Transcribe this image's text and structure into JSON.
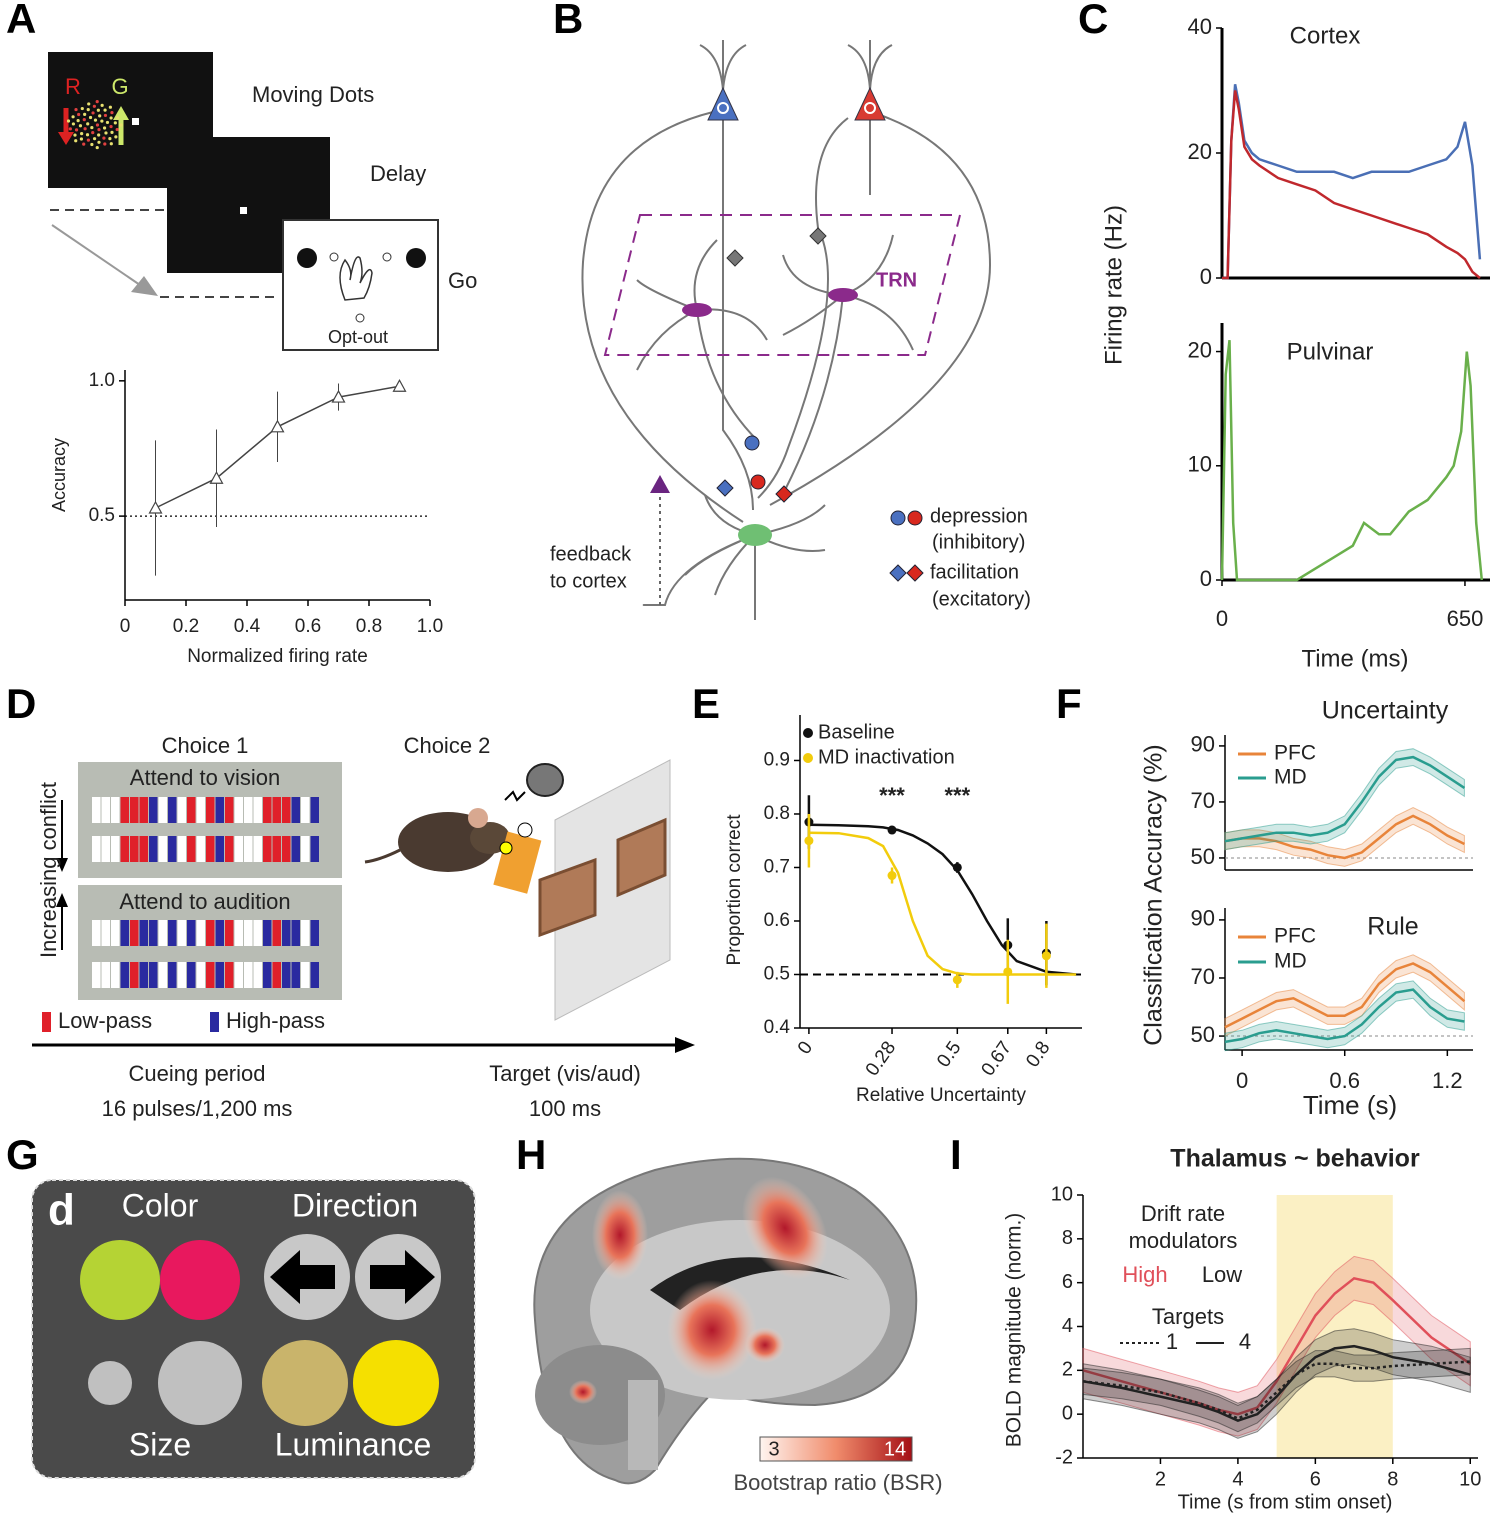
{
  "panels": {
    "letters": [
      "A",
      "B",
      "C",
      "D",
      "E",
      "F",
      "G",
      "H",
      "I"
    ],
    "a": {
      "r": "R",
      "g": "G",
      "moving_dots": "Moving Dots",
      "delay": "Delay",
      "go": "Go",
      "opt_out": "Opt-out"
    },
    "b": {
      "trn": "TRN",
      "feedback": "feedback",
      "to_cortex": "to cortex",
      "depression": "depression",
      "inhibitory": "(inhibitory)",
      "facilitation": "facilitation",
      "excitatory": "(excitatory)"
    },
    "d": {
      "choice1": "Choice 1",
      "choice2": "Choice 2",
      "vision": "Attend to vision",
      "audition": "Attend to audition",
      "conflict": "Increasing conflict",
      "low_pass": "Low-pass",
      "high_pass": "High-pass",
      "cueing": "Cueing period",
      "pulses": "16 pulses/1,200 ms",
      "target": "Target (vis/aud)",
      "target_ms": "100 ms"
    },
    "g": {
      "letter": "d",
      "color": "Color",
      "direction": "Direction",
      "size": "Size",
      "luminance": "Luminance"
    },
    "h": {
      "bar_min": "3",
      "bar_max": "14",
      "bar_label": "Bootstrap ratio (BSR)"
    }
  },
  "chart_data": [
    {
      "type": "line",
      "x": [
        0.1,
        0.3,
        0.5,
        0.7,
        0.9
      ],
      "values": [
        0.53,
        0.64,
        0.83,
        0.94,
        0.98
      ],
      "errors": [
        0.25,
        0.18,
        0.13,
        0.05,
        0.02
      ],
      "color": "#444444",
      "marker": "triangle",
      "xlim": [
        0,
        1
      ],
      "xticks": [
        0,
        0.2,
        0.4,
        0.6,
        0.8,
        {
          "value": 1,
          "label": "1.0"
        }
      ],
      "ylim": [
        0.19,
        1.04
      ],
      "yticks": [
        0.5,
        {
          "value": 1,
          "label": "1.0"
        }
      ],
      "hline": 0.5,
      "xlabel": "Normalized firing rate",
      "ylabel": "Accuracy"
    },
    {
      "type": "line",
      "title": "Cortex",
      "ylabel": "Firing rate (Hz)",
      "x": [
        0,
        15,
        25,
        35,
        45,
        60,
        80,
        100,
        150,
        200,
        250,
        300,
        350,
        400,
        450,
        500,
        550,
        600,
        630,
        650,
        670,
        690
      ],
      "xlim": [
        0,
        717
      ],
      "ylim": [
        0,
        40
      ],
      "yticks": [
        0,
        20,
        40
      ],
      "series": [
        {
          "color": "#4a6fb5",
          "values": [
            0,
            0,
            22,
            31,
            28,
            22,
            20,
            19,
            18,
            17,
            17,
            17,
            16,
            17,
            17,
            17,
            18,
            19,
            21,
            25,
            18,
            3
          ]
        },
        {
          "color": "#c0282d",
          "values": [
            0,
            0,
            22,
            30,
            27,
            21,
            19,
            18,
            16,
            15,
            14,
            12,
            11,
            10,
            9,
            8,
            7,
            5,
            4,
            3,
            1,
            0
          ]
        }
      ]
    },
    {
      "type": "line",
      "title": "Pulvinar",
      "xlabel": "Time (ms)",
      "x": [
        0,
        10,
        20,
        30,
        40,
        100,
        200,
        250,
        300,
        350,
        380,
        420,
        450,
        500,
        550,
        600,
        620,
        640,
        655,
        665,
        680,
        695
      ],
      "values": [
        0,
        18,
        21,
        5,
        0,
        0,
        0,
        1,
        2,
        3,
        5,
        4,
        4,
        6,
        7,
        9,
        10,
        13,
        20,
        17,
        5,
        0
      ],
      "color": "#6ab04c",
      "xlim": [
        0,
        717
      ],
      "xticks": [
        0,
        650
      ],
      "ylim": [
        0,
        22.5
      ],
      "yticks": [
        0,
        10,
        20
      ]
    },
    {
      "type": "line",
      "xlabel": "Relative Uncertainty",
      "ylabel": "Proportion correct",
      "x": [
        0,
        0.28,
        0.5,
        0.67,
        0.8
      ],
      "fit_x": [
        0,
        0.1,
        0.2,
        0.25,
        0.3,
        0.35,
        0.4,
        0.45,
        0.5,
        0.55,
        0.6,
        0.65,
        0.7,
        0.8,
        0.9
      ],
      "xlim": [
        -0.03,
        0.92
      ],
      "xticks": [
        0,
        0.28,
        0.5,
        0.67,
        0.8
      ],
      "ylim": [
        0.4,
        0.985
      ],
      "yticks": [
        0.4,
        0.5,
        0.6,
        0.7,
        0.8,
        0.9
      ],
      "hline": 0.5,
      "annotations": [
        "***",
        "***"
      ],
      "series": [
        {
          "name": "Baseline",
          "color": "#111111",
          "marker": "circle",
          "values": [
            0.785,
            0.77,
            0.7,
            0.555,
            0.54
          ],
          "errors": [
            0.05,
            0.005,
            0.01,
            0.05,
            0.06
          ],
          "fit": [
            0.78,
            0.779,
            0.777,
            0.775,
            0.77,
            0.76,
            0.745,
            0.725,
            0.695,
            0.65,
            0.6,
            0.555,
            0.525,
            0.505,
            0.5
          ]
        },
        {
          "name": "MD inactivation",
          "color": "#f2cc0c",
          "marker": "circle",
          "values": [
            0.75,
            0.685,
            0.49,
            0.505,
            0.535
          ],
          "errors": [
            0.05,
            0.015,
            0.015,
            0.06,
            0.06
          ],
          "fit": [
            0.765,
            0.764,
            0.755,
            0.74,
            0.69,
            0.6,
            0.535,
            0.51,
            0.502,
            0.5,
            0.5,
            0.5,
            0.5,
            0.5,
            0.5
          ]
        }
      ]
    },
    {
      "type": "line",
      "title": "Uncertainty",
      "ylabel": "Classification Accuracy (%)",
      "x": [
        -0.1,
        0,
        0.1,
        0.2,
        0.3,
        0.4,
        0.5,
        0.6,
        0.7,
        0.8,
        0.9,
        1.0,
        1.1,
        1.2,
        1.3
      ],
      "xlim": [
        -0.1,
        1.35
      ],
      "ylim": [
        45.7,
        93.9
      ],
      "yticks": [
        50,
        70,
        90
      ],
      "hline": 50,
      "series": [
        {
          "name": "PFC",
          "color": "#e8843a",
          "error": 3,
          "values": [
            56,
            57,
            57,
            56,
            54,
            53,
            51,
            50,
            52,
            57,
            62,
            65,
            62,
            58,
            55
          ]
        },
        {
          "name": "MD",
          "color": "#2a9d8f",
          "error": 3,
          "values": [
            56,
            57,
            58,
            59,
            59,
            58,
            59,
            62,
            70,
            79,
            85,
            86,
            83,
            79,
            75
          ]
        }
      ]
    },
    {
      "type": "line",
      "title": "Rule",
      "xlabel": "Time (s)",
      "x": [
        -0.1,
        0,
        0.1,
        0.2,
        0.3,
        0.4,
        0.5,
        0.6,
        0.7,
        0.8,
        0.9,
        1.0,
        1.1,
        1.2,
        1.3
      ],
      "xlim": [
        -0.1,
        1.35
      ],
      "xticks": [
        0,
        0.6,
        1.2
      ],
      "ylim": [
        45.2,
        94.1
      ],
      "yticks": [
        50,
        70,
        90
      ],
      "hline": 50,
      "series": [
        {
          "name": "PFC",
          "color": "#e8843a",
          "error": 3,
          "values": [
            53,
            56,
            59,
            62,
            63,
            60,
            57,
            57,
            60,
            68,
            73,
            75,
            72,
            67,
            62
          ]
        },
        {
          "name": "MD",
          "color": "#2a9d8f",
          "error": 3,
          "values": [
            48,
            49,
            51,
            52,
            51,
            50,
            49,
            50,
            54,
            60,
            65,
            66,
            60,
            56,
            55
          ]
        }
      ]
    },
    {
      "type": "line",
      "title": "Thalamus ~ behavior",
      "xlabel": "Time (s from stim onset)",
      "ylabel": "BOLD magnitude (norm.)",
      "x": [
        0,
        1,
        2,
        3,
        3.5,
        4,
        4.5,
        5,
        5.5,
        6,
        6.5,
        7,
        7.5,
        8,
        9,
        10
      ],
      "xlim": [
        0,
        10.2
      ],
      "xticks": [
        2,
        4,
        6,
        8,
        10
      ],
      "ylim": [
        -2,
        10
      ],
      "yticks": [
        -2,
        0,
        2,
        4,
        6,
        8,
        10
      ],
      "highlight": [
        5,
        8
      ],
      "highlight_color": "#fbf0c4",
      "legend_text": {
        "drift": "Drift rate",
        "modulators": "modulators",
        "high": "High",
        "low": "Low",
        "targets": "Targets",
        "one": "1",
        "four": "4"
      },
      "series": [
        {
          "color": "#e0505a",
          "error": 1,
          "values": [
            2,
            1.5,
            1,
            0.5,
            0.2,
            0,
            0.3,
            1.5,
            3,
            4.5,
            5.5,
            6.2,
            6,
            5.2,
            3.5,
            2.3
          ]
        },
        {
          "color": "#222222",
          "error": 0.8,
          "values": [
            1.5,
            1.2,
            0.8,
            0.4,
            0.1,
            -0.3,
            0,
            0.8,
            1.8,
            2.6,
            3,
            3.1,
            2.9,
            2.6,
            2.3,
            1.8
          ]
        },
        {
          "color": "#222222",
          "error": 0.6,
          "dash": "dotted",
          "values": [
            1.5,
            1.3,
            1,
            0.5,
            0.2,
            -0.2,
            0.2,
            1,
            1.8,
            2.3,
            2.3,
            2.1,
            2.1,
            2.2,
            2.3,
            2.4
          ]
        }
      ]
    }
  ]
}
